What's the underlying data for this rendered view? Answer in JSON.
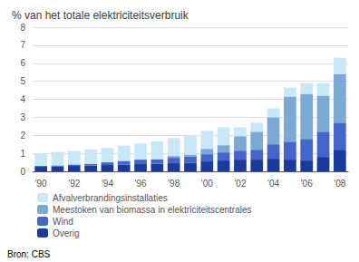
{
  "chart_data": {
    "type": "bar",
    "title": "% van het totale elektriciteitsverbruik",
    "categories": [
      "'90",
      null,
      "'92",
      null,
      "'94",
      null,
      "'96",
      null,
      "'98",
      null,
      "'00",
      null,
      "'02",
      null,
      "'04",
      null,
      "'06",
      null,
      "'08"
    ],
    "series": [
      {
        "name": "Overig",
        "color": "#1a3a9e",
        "values": [
          0.25,
          0.28,
          0.3,
          0.32,
          0.35,
          0.38,
          0.4,
          0.42,
          0.45,
          0.48,
          0.55,
          0.6,
          0.65,
          0.65,
          0.7,
          0.65,
          0.6,
          0.8,
          1.2
        ]
      },
      {
        "name": "Wind",
        "color": "#4466cc",
        "values": [
          0.05,
          0.05,
          0.08,
          0.1,
          0.15,
          0.2,
          0.25,
          0.25,
          0.3,
          0.35,
          0.4,
          0.45,
          0.5,
          0.55,
          0.8,
          1.0,
          1.2,
          1.4,
          1.5
        ]
      },
      {
        "name": "Meestoken van biomassa in elektriciteitscentrales",
        "color": "#7aaad4",
        "values": [
          0.0,
          0.0,
          0.0,
          0.0,
          0.0,
          0.0,
          0.0,
          0.0,
          0.1,
          0.1,
          0.3,
          0.4,
          0.8,
          1.0,
          1.5,
          2.5,
          2.5,
          2.0,
          2.7
        ]
      },
      {
        "name": "Afvalverbrandingsinstallaties",
        "color": "#c8e8f8",
        "values": [
          0.7,
          0.75,
          0.75,
          0.8,
          0.8,
          0.85,
          0.9,
          1.0,
          1.0,
          1.05,
          1.0,
          1.0,
          0.5,
          0.5,
          0.5,
          0.5,
          0.6,
          0.7,
          0.9
        ]
      }
    ],
    "stacked": true,
    "ylim": [
      0,
      8
    ],
    "yticks": [
      0,
      1,
      2,
      3,
      4,
      5,
      6,
      7,
      8
    ],
    "grid": true,
    "legend": "bottom",
    "annotations": [
      "Bron: CBS"
    ]
  }
}
